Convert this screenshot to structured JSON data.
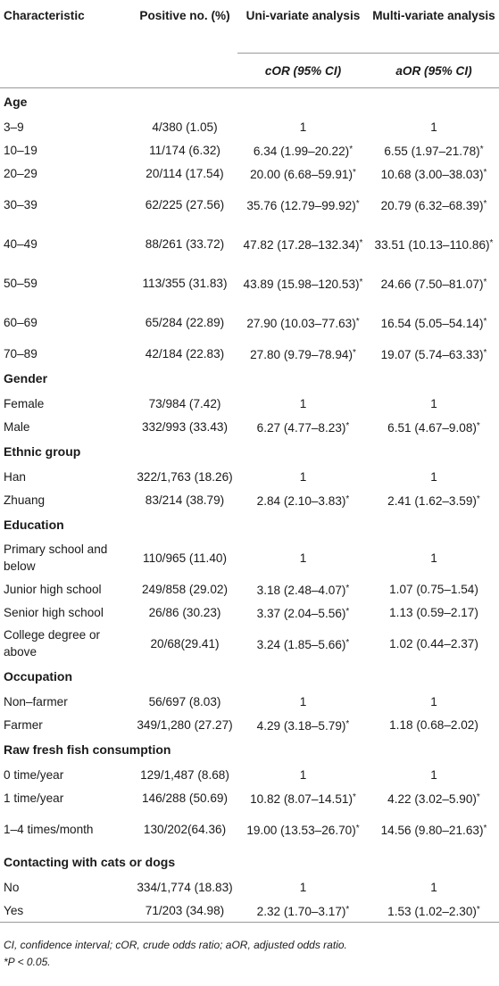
{
  "header": {
    "characteristic": "Characteristic",
    "positive": "Positive no. (%)",
    "uni": "Uni-variate analysis",
    "multi": "Multi-variate analysis",
    "cor": "cOR (95% CI)",
    "aor": "aOR (95% CI)"
  },
  "groups": [
    {
      "category": "Age",
      "rows": [
        {
          "label": "3–9",
          "positive": "4/380 (1.05)",
          "cor": "1",
          "aor": "1"
        },
        {
          "label": "10–19",
          "positive": "11/174 (6.32)",
          "cor": "6.34 (1.99–20.22)*",
          "aor": "6.55 (1.97–21.78)*"
        },
        {
          "label": "20–29",
          "positive": "20/114 (17.54)",
          "cor": "20.00 (6.68–59.91)*",
          "aor": "10.68 (3.00–38.03)*"
        },
        {
          "label": "30–39",
          "positive": "62/225 (27.56)",
          "cor": "35.76 (12.79–99.92)*",
          "aor": "20.79 (6.32–68.39)*"
        },
        {
          "label": "40–49",
          "positive": "88/261 (33.72)",
          "cor": "47.82 (17.28–132.34)*",
          "aor": "33.51 (10.13–110.86)*"
        },
        {
          "label": "50–59",
          "positive": "113/355 (31.83)",
          "cor": "43.89 (15.98–120.53)*",
          "aor": "24.66 (7.50–81.07)*"
        },
        {
          "label": "60–69",
          "positive": "65/284 (22.89)",
          "cor": "27.90 (10.03–77.63)*",
          "aor": "16.54 (5.05–54.14)*"
        },
        {
          "label": "70–89",
          "positive": "42/184 (22.83)",
          "cor": "27.80 (9.79–78.94)*",
          "aor": "19.07 (5.74–63.33)*"
        }
      ]
    },
    {
      "category": "Gender",
      "rows": [
        {
          "label": "Female",
          "positive": "73/984 (7.42)",
          "cor": "1",
          "aor": "1"
        },
        {
          "label": "Male",
          "positive": "332/993 (33.43)",
          "cor": "6.27 (4.77–8.23)*",
          "aor": "6.51 (4.67–9.08)*"
        }
      ]
    },
    {
      "category": "Ethnic group",
      "rows": [
        {
          "label": "Han",
          "positive": "322/1,763 (18.26)",
          "cor": "1",
          "aor": "1"
        },
        {
          "label": "Zhuang",
          "positive": "83/214 (38.79)",
          "cor": "2.84 (2.10–3.83)*",
          "aor": "2.41 (1.62–3.59)*"
        }
      ]
    },
    {
      "category": "Education",
      "rows": [
        {
          "label": "Primary school and below",
          "positive": "110/965 (11.40)",
          "cor": "1",
          "aor": "1"
        },
        {
          "label": "Junior high school",
          "positive": "249/858 (29.02)",
          "cor": "3.18 (2.48–4.07)*",
          "aor": "1.07 (0.75–1.54)"
        },
        {
          "label": "Senior high school",
          "positive": "26/86 (30.23)",
          "cor": "3.37 (2.04–5.56)*",
          "aor": "1.13 (0.59–2.17)"
        },
        {
          "label": "College degree or above",
          "positive": "20/68(29.41)",
          "cor": "3.24 (1.85–5.66)*",
          "aor": "1.02 (0.44–2.37)"
        }
      ]
    },
    {
      "category": "Occupation",
      "rows": [
        {
          "label": "Non–farmer",
          "positive": "56/697 (8.03)",
          "cor": "1",
          "aor": "1"
        },
        {
          "label": "Farmer",
          "positive": "349/1,280 (27.27)",
          "cor": "4.29 (3.18–5.79)*",
          "aor": "1.18 (0.68–2.02)"
        }
      ]
    },
    {
      "category": "Raw fresh fish consumption",
      "rows": [
        {
          "label": "0 time/year",
          "positive": "129/1,487 (8.68)",
          "cor": "1",
          "aor": "1"
        },
        {
          "label": "1 time/year",
          "positive": "146/288 (50.69)",
          "cor": "10.82 (8.07–14.51)*",
          "aor": "4.22 (3.02–5.90)*"
        },
        {
          "label": "1–4 times/month",
          "positive": "130/202(64.36)",
          "cor": "19.00 (13.53–26.70)*",
          "aor": "14.56 (9.80–21.63)*"
        }
      ]
    },
    {
      "category": "Contacting with cats or dogs",
      "rows": [
        {
          "label": "No",
          "positive": "334/1,774 (18.83)",
          "cor": "1",
          "aor": "1"
        },
        {
          "label": "Yes",
          "positive": "71/203 (34.98)",
          "cor": "2.32 (1.70–3.17)*",
          "aor": "1.53 (1.02–2.30)*"
        }
      ]
    }
  ],
  "footnotes": [
    "CI, confidence interval; cOR, crude odds ratio; aOR, adjusted odds ratio.",
    "*P < 0.05."
  ]
}
